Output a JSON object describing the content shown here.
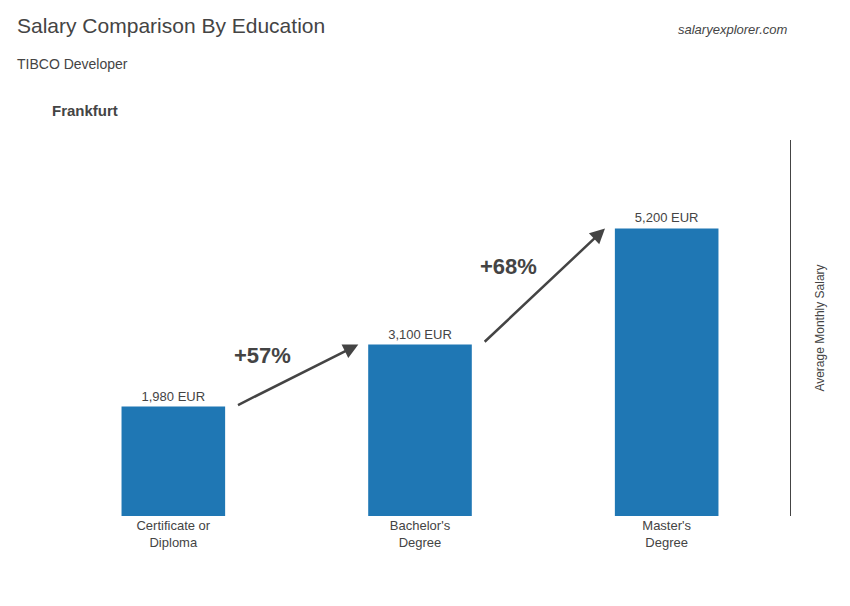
{
  "chart_data": {
    "type": "bar",
    "title": "Salary Comparison By Education",
    "subtitle": "TIBCO Developer",
    "ylabel": "Average Monthly Salary",
    "categories": [
      "Certificate or\nDiploma",
      "Bachelor's\nDegree",
      "Master's\nDegree"
    ],
    "values": [
      1980,
      3100,
      5200
    ],
    "value_labels": [
      "1,980 EUR",
      "3,100 EUR",
      "5,200 EUR"
    ],
    "data_labels": true,
    "ylim": [
      0,
      6800
    ],
    "tick_labels": "x",
    "grid": false,
    "annotations": [
      {
        "text": "Frankfurt"
      },
      {
        "text": "salaryexplorer.com"
      },
      {
        "text": "+57%",
        "from": "Certificate or\nDiploma",
        "to": "Bachelor's\nDegree"
      },
      {
        "text": "+68%",
        "from": "Bachelor's\nDegree",
        "to": "Master's\nDegree"
      }
    ]
  }
}
